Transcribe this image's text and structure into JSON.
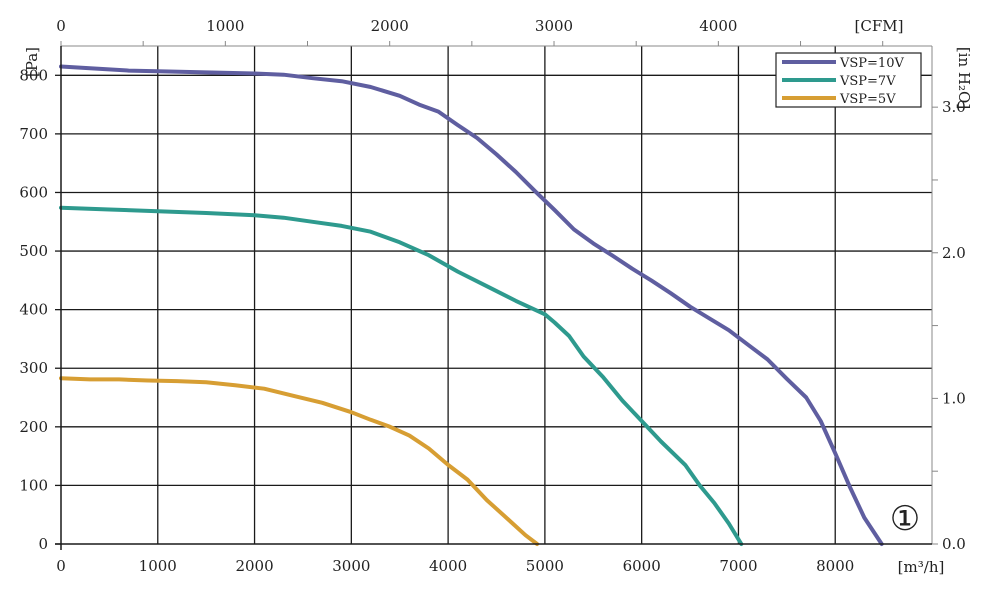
{
  "chart_data": {
    "type": "line",
    "title": "",
    "xlabel": "[m³/h]",
    "ylabel": "[Pa]",
    "secondary_x_label": "[CFM]",
    "secondary_y_label": "[in H₂O]",
    "xlim": [
      0,
      9000
    ],
    "ylim": [
      0,
      850
    ],
    "secondary_xlim": [
      0,
      5300
    ],
    "secondary_ylim": [
      0,
      3.42
    ],
    "x_ticks": [
      0,
      1000,
      2000,
      3000,
      4000,
      5000,
      6000,
      7000,
      8000
    ],
    "y_ticks": [
      0,
      100,
      200,
      300,
      400,
      500,
      600,
      700,
      800
    ],
    "secondary_x_ticks": [
      0,
      1000,
      2000,
      3000,
      4000
    ],
    "secondary_y_ticks": [
      "0.0",
      "1.0",
      "2.0",
      "3.0"
    ],
    "grid": true,
    "legend_position": "top-right",
    "annotation": "①",
    "series": [
      {
        "name": "VSP=10V",
        "color": "#5f5ea0",
        "x": [
          0,
          300,
          700,
          1000,
          1500,
          2000,
          2300,
          2600,
          2900,
          3200,
          3500,
          3700,
          3900,
          4100,
          4300,
          4500,
          4700,
          4900,
          5100,
          5300,
          5500,
          5700,
          5900,
          6100,
          6300,
          6500,
          6700,
          6900,
          7100,
          7300,
          7500,
          7700,
          7850,
          8000,
          8150,
          8300,
          8480
        ],
        "y": [
          815,
          812,
          808,
          807,
          805,
          803,
          801,
          795,
          790,
          780,
          765,
          750,
          738,
          715,
          693,
          665,
          635,
          602,
          570,
          537,
          513,
          492,
          470,
          450,
          428,
          405,
          385,
          365,
          340,
          315,
          282,
          250,
          210,
          155,
          98,
          45,
          0
        ]
      },
      {
        "name": "VSP=7V",
        "color": "#2e9a8e",
        "x": [
          0,
          500,
          1000,
          1500,
          2000,
          2300,
          2600,
          2900,
          3200,
          3500,
          3800,
          4100,
          4400,
          4700,
          5000,
          5100,
          5250,
          5400,
          5600,
          5800,
          6000,
          6200,
          6450,
          6600,
          6750,
          6900,
          7030
        ],
        "y": [
          574,
          571,
          568,
          565,
          561,
          557,
          550,
          543,
          533,
          515,
          493,
          465,
          440,
          415,
          392,
          378,
          355,
          320,
          285,
          245,
          210,
          175,
          135,
          100,
          70,
          35,
          0
        ]
      },
      {
        "name": "VSP=5V",
        "color": "#d79e33",
        "x": [
          0,
          300,
          600,
          900,
          1200,
          1500,
          1800,
          2100,
          2400,
          2700,
          3000,
          3200,
          3400,
          3600,
          3800,
          4000,
          4200,
          4400,
          4600,
          4800,
          4920
        ],
        "y": [
          283,
          281,
          281,
          279,
          278,
          276,
          271,
          265,
          253,
          241,
          225,
          212,
          200,
          185,
          163,
          135,
          110,
          75,
          45,
          15,
          0
        ]
      }
    ]
  }
}
